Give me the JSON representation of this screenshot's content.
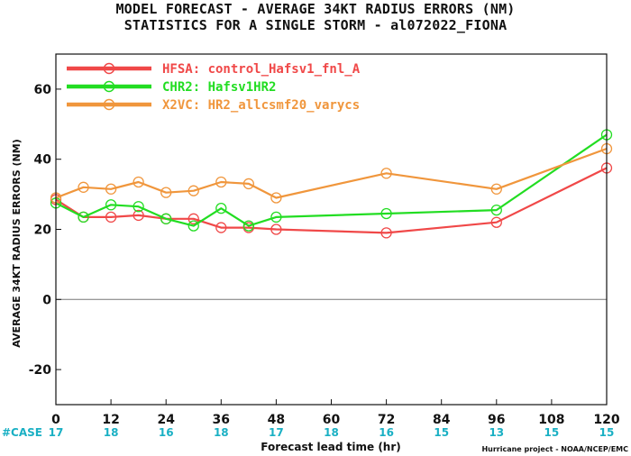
{
  "title_line1": "MODEL FORECAST - AVERAGE 34KT RADIUS ERRORS (NM)",
  "title_line2": "STATISTICS FOR A SINGLE STORM - al072022_FIONA",
  "case_label": "#CASE",
  "credit": "Hurricane project - NOAA/NCEP/EMC",
  "chart_data": {
    "type": "line",
    "xlabel": "Forecast lead time (hr)",
    "ylabel": "AVERAGE 34KT RADIUS ERRORS (NM)",
    "xlim": [
      0,
      120
    ],
    "ylim": [
      -30,
      70
    ],
    "xticks": [
      0,
      12,
      24,
      36,
      48,
      60,
      72,
      84,
      96,
      108,
      120
    ],
    "yticks": [
      -20,
      0,
      20,
      40,
      60
    ],
    "zero_line": true,
    "legend_position": "top-left",
    "case_counts": [
      "17",
      "18",
      "16",
      "18",
      "17",
      "18",
      "16",
      "15",
      "13",
      "15",
      "15"
    ],
    "series": [
      {
        "name": "HFSA: control_Hafsv1_fnl_A",
        "color": "#f04848",
        "x": [
          0,
          6,
          12,
          18,
          24,
          30,
          36,
          42,
          48,
          72,
          96,
          120
        ],
        "values": [
          28.5,
          23.5,
          23.5,
          24,
          23,
          23,
          20.5,
          20.5,
          20,
          19,
          22,
          37.5
        ]
      },
      {
        "name": "CHR2: Hafsv1HR2",
        "color": "#22dd22",
        "x": [
          0,
          6,
          12,
          18,
          24,
          30,
          36,
          42,
          48,
          72,
          96,
          120
        ],
        "values": [
          27.5,
          23.5,
          27,
          26.5,
          23,
          21,
          26,
          21,
          23.5,
          24.5,
          25.5,
          47
        ]
      },
      {
        "name": "X2VC: HR2_allcsmf20_varycs",
        "color": "#f0963c",
        "x": [
          0,
          6,
          12,
          18,
          24,
          30,
          36,
          42,
          48,
          72,
          96,
          120
        ],
        "values": [
          29,
          32,
          31.5,
          33.5,
          30.5,
          31,
          33.5,
          33,
          29,
          36,
          31.5,
          43
        ]
      }
    ]
  }
}
